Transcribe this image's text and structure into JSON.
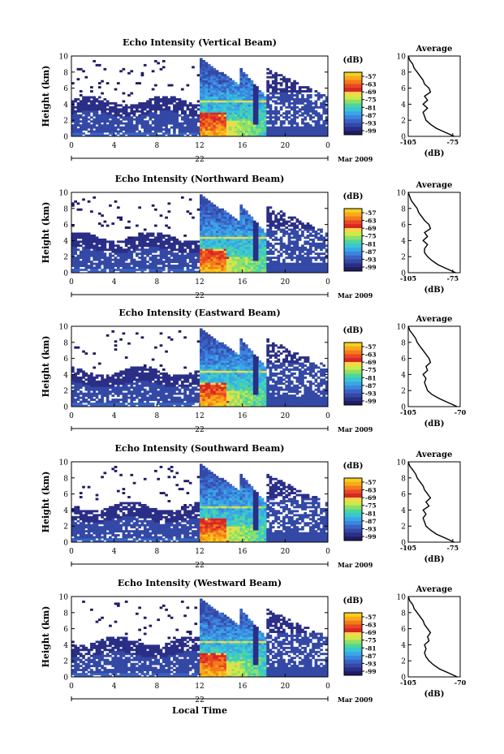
{
  "figure": {
    "xlabel_common": "Local Time",
    "date_label": "Mar 2009",
    "day_label": "22"
  },
  "colorbar": {
    "unit": "(dB)",
    "ticks": [
      "-57",
      "-63",
      "-69",
      "-75",
      "-81",
      "-87",
      "-93",
      "-99"
    ],
    "colors": [
      "#f5d01c",
      "#f9a81a",
      "#f47a1c",
      "#e84822",
      "#d62626",
      "#f4d84a",
      "#cfe84a",
      "#8ce06a",
      "#4ed69a",
      "#38c6d6",
      "#3aa6e6",
      "#3a86de",
      "#3a62c4",
      "#3448a6",
      "#2a2e86",
      "#1e1c62"
    ]
  },
  "chart_data": [
    {
      "type": "heatmap",
      "title": "Echo Intensity (Vertical Beam)",
      "ylabel": "Height (km)",
      "ylim": [
        0,
        10
      ],
      "xlim": [
        0,
        24
      ],
      "xticks": [
        "0",
        "4",
        "8",
        "12",
        "16",
        "20",
        "0"
      ],
      "yticks": [
        "0",
        "2",
        "4",
        "6",
        "8",
        "10"
      ],
      "profile": {
        "title": "Average",
        "xlabel": "(dB)",
        "xlim": [
          -105,
          -70
        ],
        "xticks": [
          "-105",
          "-75"
        ],
        "yticks": [
          "0",
          "2",
          "4",
          "6",
          "8",
          "10"
        ],
        "height": [
          0,
          0.5,
          1,
          1.5,
          2,
          2.5,
          3,
          3.5,
          4,
          4.5,
          5,
          5.5,
          6,
          6.5,
          7,
          7.5,
          8,
          8.5,
          9,
          9.5,
          10
        ],
        "dB": [
          -74,
          -80,
          -86,
          -90,
          -93,
          -94,
          -95,
          -92,
          -95,
          -92,
          -94,
          -90,
          -91,
          -94,
          -95,
          -97,
          -99,
          -101,
          -102,
          -104,
          -105
        ]
      }
    },
    {
      "type": "heatmap",
      "title": "Echo Intensity (Northward Beam)",
      "ylabel": "Height (km)",
      "ylim": [
        0,
        10
      ],
      "xlim": [
        0,
        24
      ],
      "xticks": [
        "0",
        "4",
        "8",
        "12",
        "16",
        "20",
        "0"
      ],
      "yticks": [
        "0",
        "2",
        "4",
        "6",
        "8",
        "10"
      ],
      "profile": {
        "title": "Average",
        "xlabel": "(dB)",
        "xlim": [
          -105,
          -70
        ],
        "xticks": [
          "-105",
          "-75"
        ],
        "yticks": [
          "0",
          "2",
          "4",
          "6",
          "8",
          "10"
        ],
        "height": [
          0,
          0.5,
          1,
          1.5,
          2,
          2.5,
          3,
          3.5,
          4,
          4.5,
          5,
          5.5,
          6,
          6.5,
          7,
          7.5,
          8,
          8.5,
          9,
          9.5,
          10
        ],
        "dB": [
          -73,
          -79,
          -85,
          -89,
          -92,
          -94,
          -94,
          -92,
          -95,
          -92,
          -94,
          -90,
          -91,
          -94,
          -96,
          -98,
          -99,
          -101,
          -103,
          -104,
          -105
        ]
      }
    },
    {
      "type": "heatmap",
      "title": "Echo Intensity (Eastward Beam)",
      "ylabel": "Height (km)",
      "ylim": [
        0,
        10
      ],
      "xlim": [
        0,
        24
      ],
      "xticks": [
        "0",
        "4",
        "8",
        "12",
        "16",
        "20",
        "0"
      ],
      "yticks": [
        "0",
        "2",
        "4",
        "6",
        "8",
        "10"
      ],
      "profile": {
        "title": "Average",
        "xlabel": "(dB)",
        "xlim": [
          -105,
          -70
        ],
        "xticks": [
          "-105",
          "-70"
        ],
        "yticks": [
          "0",
          "2",
          "4",
          "6",
          "8",
          "10"
        ],
        "height": [
          0,
          0.5,
          1,
          1.5,
          2,
          2.5,
          3,
          3.5,
          4,
          4.5,
          5,
          5.5,
          6,
          6.5,
          7,
          7.5,
          8,
          8.5,
          9,
          9.5,
          10
        ],
        "dB": [
          -72,
          -78,
          -84,
          -89,
          -92,
          -93,
          -94,
          -93,
          -95,
          -92,
          -93,
          -90,
          -91,
          -93,
          -95,
          -97,
          -99,
          -100,
          -102,
          -104,
          -105
        ]
      }
    },
    {
      "type": "heatmap",
      "title": "Echo Intensity (Southward Beam)",
      "ylabel": "Height (km)",
      "ylim": [
        0,
        10
      ],
      "xlim": [
        0,
        24
      ],
      "xticks": [
        "0",
        "4",
        "8",
        "12",
        "16",
        "20",
        "0"
      ],
      "yticks": [
        "0",
        "2",
        "4",
        "6",
        "8",
        "10"
      ],
      "profile": {
        "title": "Average",
        "xlabel": "(dB)",
        "xlim": [
          -105,
          -70
        ],
        "xticks": [
          "-105",
          "-75"
        ],
        "yticks": [
          "0",
          "2",
          "4",
          "6",
          "8",
          "10"
        ],
        "height": [
          0,
          0.5,
          1,
          1.5,
          2,
          2.5,
          3,
          3.5,
          4,
          4.5,
          5,
          5.5,
          6,
          6.5,
          7,
          7.5,
          8,
          8.5,
          9,
          9.5,
          10
        ],
        "dB": [
          -74,
          -80,
          -86,
          -90,
          -93,
          -94,
          -95,
          -93,
          -95,
          -91,
          -93,
          -90,
          -92,
          -94,
          -95,
          -97,
          -99,
          -100,
          -102,
          -104,
          -105
        ]
      }
    },
    {
      "type": "heatmap",
      "title": "Echo Intensity (Westward Beam)",
      "ylabel": "Height (km)",
      "ylim": [
        0,
        10
      ],
      "xlim": [
        0,
        24
      ],
      "xticks": [
        "0",
        "4",
        "8",
        "12",
        "16",
        "20",
        "0"
      ],
      "yticks": [
        "0",
        "2",
        "4",
        "6",
        "8",
        "10"
      ],
      "profile": {
        "title": "Average",
        "xlabel": "(dB)",
        "xlim": [
          -105,
          -70
        ],
        "xticks": [
          "-105",
          "-70"
        ],
        "yticks": [
          "0",
          "2",
          "4",
          "6",
          "8",
          "10"
        ],
        "height": [
          0,
          0.5,
          1,
          1.5,
          2,
          2.5,
          3,
          3.5,
          4,
          4.5,
          5,
          5.5,
          6,
          6.5,
          7,
          7.5,
          8,
          8.5,
          9,
          9.5,
          10
        ],
        "dB": [
          -72,
          -78,
          -84,
          -88,
          -91,
          -93,
          -94,
          -93,
          -94,
          -91,
          -92,
          -90,
          -92,
          -94,
          -95,
          -97,
          -99,
          -101,
          -102,
          -104,
          -105
        ]
      }
    }
  ]
}
